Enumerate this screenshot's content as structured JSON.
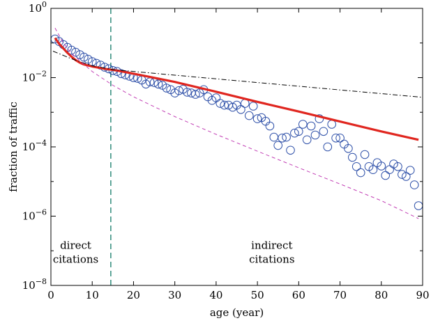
{
  "chart_data": {
    "type": "scatter",
    "xlabel": "age (year)",
    "ylabel": "fraction of traffic",
    "x_scale": "linear",
    "y_scale": "log",
    "xlim": [
      0,
      90
    ],
    "ylim": [
      1e-08,
      1
    ],
    "x_ticks": [
      0,
      10,
      20,
      30,
      40,
      50,
      60,
      70,
      80,
      90
    ],
    "x_tick_labels": [
      "0",
      "10",
      "20",
      "30",
      "40",
      "50",
      "60",
      "70",
      "80",
      "90"
    ],
    "y_tick_labels": [
      {
        "base": "10",
        "exp": "0",
        "value": 1
      },
      {
        "base": "10",
        "exp": "−2",
        "value": 0.01
      },
      {
        "base": "10",
        "exp": "−4",
        "value": 0.0001
      },
      {
        "base": "10",
        "exp": "−6",
        "value": 1e-06
      },
      {
        "base": "10",
        "exp": "−8",
        "value": 1e-08
      }
    ],
    "grid": false,
    "annotations": [
      {
        "lines": [
          "direct",
          "citations"
        ],
        "x": 6,
        "y": 4.5e-08
      },
      {
        "lines": [
          "indirect",
          "citations"
        ],
        "x": 53.5,
        "y": 4.5e-08
      }
    ],
    "divider": {
      "x": 14.5,
      "style": "dashed",
      "color": "#2e8b7a"
    },
    "series": [
      {
        "kind": "markers",
        "marker": "open-circle",
        "color": "#2d4fa8",
        "points": [
          [
            1,
            0.13
          ],
          [
            2,
            0.11
          ],
          [
            3,
            0.09
          ],
          [
            4,
            0.075
          ],
          [
            5,
            0.062
          ],
          [
            6,
            0.054
          ],
          [
            7,
            0.046
          ],
          [
            8,
            0.039
          ],
          [
            9,
            0.034
          ],
          [
            10,
            0.029
          ],
          [
            11,
            0.026
          ],
          [
            12,
            0.023
          ],
          [
            13,
            0.02
          ],
          [
            14,
            0.018
          ],
          [
            15,
            0.016
          ],
          [
            16,
            0.015
          ],
          [
            17,
            0.013
          ],
          [
            18,
            0.012
          ],
          [
            19,
            0.011
          ],
          [
            20,
            0.01
          ],
          [
            21,
            0.0095
          ],
          [
            22,
            0.0085
          ],
          [
            23,
            0.0065
          ],
          [
            24,
            0.0075
          ],
          [
            25,
            0.0072
          ],
          [
            26,
            0.0065
          ],
          [
            27,
            0.006
          ],
          [
            28,
            0.005
          ],
          [
            29,
            0.0045
          ],
          [
            30,
            0.0036
          ],
          [
            31,
            0.0042
          ],
          [
            32,
            0.0046
          ],
          [
            33,
            0.0038
          ],
          [
            34,
            0.0036
          ],
          [
            35,
            0.0033
          ],
          [
            36,
            0.0036
          ],
          [
            37,
            0.0045
          ],
          [
            38,
            0.0028
          ],
          [
            39,
            0.0022
          ],
          [
            40,
            0.0026
          ],
          [
            41,
            0.0018
          ],
          [
            42,
            0.0016
          ],
          [
            43,
            0.0016
          ],
          [
            44,
            0.0014
          ],
          [
            45,
            0.0016
          ],
          [
            46,
            0.0012
          ],
          [
            47,
            0.0018
          ],
          [
            48,
            0.0008
          ],
          [
            49,
            0.0015
          ],
          [
            50,
            0.00065
          ],
          [
            51,
            0.0007
          ],
          [
            52,
            0.00055
          ],
          [
            53,
            0.0004
          ],
          [
            54,
            0.00019
          ],
          [
            55,
            0.00011
          ],
          [
            56,
            0.00018
          ],
          [
            57,
            0.00019
          ],
          [
            58,
            8e-05
          ],
          [
            59,
            0.00025
          ],
          [
            60,
            0.00028
          ],
          [
            61,
            0.00045
          ],
          [
            62,
            0.00016
          ],
          [
            63,
            0.0004
          ],
          [
            64,
            0.00022
          ],
          [
            65,
            0.00065
          ],
          [
            66,
            0.00028
          ],
          [
            67,
            0.0001
          ],
          [
            68,
            0.00045
          ],
          [
            69,
            0.00018
          ],
          [
            70,
            0.00018
          ],
          [
            71,
            0.00012
          ],
          [
            72,
            9e-05
          ],
          [
            73,
            5e-05
          ],
          [
            74,
            2.7e-05
          ],
          [
            75,
            1.8e-05
          ],
          [
            76,
            6e-05
          ],
          [
            77,
            2.7e-05
          ],
          [
            78,
            2.2e-05
          ],
          [
            79,
            3.5e-05
          ],
          [
            80,
            2.8e-05
          ],
          [
            81,
            1.5e-05
          ],
          [
            82,
            2.2e-05
          ],
          [
            83,
            3.2e-05
          ],
          [
            84,
            2.7e-05
          ],
          [
            85,
            1.6e-05
          ],
          [
            86,
            1.4e-05
          ],
          [
            87,
            2.1e-05
          ],
          [
            88,
            8e-06
          ],
          [
            89,
            2e-06
          ]
        ]
      },
      {
        "kind": "line",
        "style": "solid",
        "color": "#e0261f",
        "points": [
          [
            1,
            0.14
          ],
          [
            2,
            0.095
          ],
          [
            3,
            0.07
          ],
          [
            4,
            0.052
          ],
          [
            5,
            0.04
          ],
          [
            6,
            0.032
          ],
          [
            7,
            0.027
          ],
          [
            8,
            0.024
          ],
          [
            10,
            0.021
          ],
          [
            13,
            0.018
          ],
          [
            16,
            0.016
          ],
          [
            20,
            0.013
          ],
          [
            30,
            0.0075
          ],
          [
            40,
            0.0039
          ],
          [
            50,
            0.002
          ],
          [
            60,
            0.00105
          ],
          [
            70,
            0.00054
          ],
          [
            80,
            0.00028
          ],
          [
            89,
            0.00016
          ]
        ]
      },
      {
        "kind": "line",
        "style": "dashdot",
        "color": "#000000",
        "points": [
          [
            0.5,
            0.058
          ],
          [
            5,
            0.035
          ],
          [
            10,
            0.022
          ],
          [
            15,
            0.017
          ],
          [
            90,
            0.0027
          ]
        ]
      },
      {
        "kind": "line",
        "style": "dashed",
        "color": "#c23fb5",
        "points": [
          [
            1,
            0.27
          ],
          [
            3,
            0.1
          ],
          [
            5,
            0.05
          ],
          [
            10,
            0.015
          ],
          [
            15,
            0.006
          ],
          [
            20,
            0.0028
          ],
          [
            30,
            0.00075
          ],
          [
            40,
            0.00023
          ],
          [
            50,
            7.5e-05
          ],
          [
            60,
            2.5e-05
          ],
          [
            70,
            8.5e-06
          ],
          [
            80,
            2.8e-06
          ],
          [
            89,
            8.5e-07
          ]
        ]
      }
    ]
  }
}
